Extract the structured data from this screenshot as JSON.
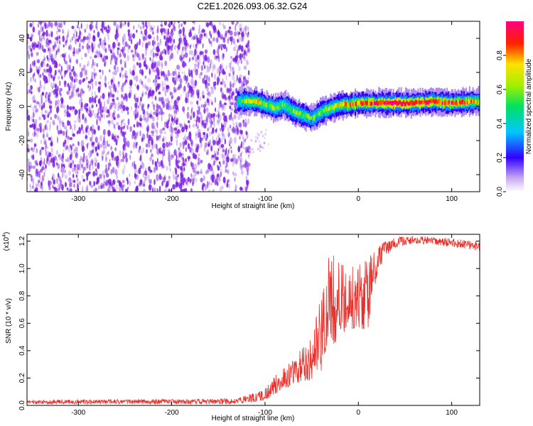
{
  "title": "C2E1.2026.093.06.32.G24",
  "chart_data": [
    {
      "type": "heatmap",
      "name": "spectrogram",
      "xlabel": "Height of straight line (km)",
      "ylabel": "Frequency (Hz)",
      "xlim": [
        -355,
        130
      ],
      "ylim": [
        -50,
        50
      ],
      "xticks": [
        -300,
        -200,
        -100,
        0,
        100
      ],
      "xtick_labels": [
        "-300",
        "-200",
        "-100",
        "0",
        "100"
      ],
      "yticks": [
        -40,
        -20,
        0,
        20,
        40
      ],
      "ytick_labels": [
        "-40",
        "-20",
        "0",
        "20",
        "40"
      ],
      "noise_region_x": [
        -355,
        -125
      ],
      "ridge": {
        "x": [
          -130,
          -120,
          -110,
          -100,
          -90,
          -80,
          -70,
          -60,
          -50,
          -40,
          -30,
          -20,
          -10,
          0,
          20,
          40,
          60,
          80,
          100,
          130
        ],
        "freq": [
          3,
          3,
          3,
          1,
          -1,
          1,
          -3,
          -5,
          -7,
          -3,
          -1,
          1,
          1,
          2,
          2,
          2,
          2,
          3,
          2,
          3
        ],
        "amplitude": [
          0.45,
          0.6,
          0.7,
          0.55,
          0.6,
          0.5,
          0.6,
          0.55,
          0.5,
          0.55,
          0.6,
          0.7,
          0.75,
          0.8,
          0.9,
          0.95,
          0.9,
          0.9,
          0.85,
          0.7
        ]
      },
      "colorbar": {
        "label": "Normalized spectral amplitude",
        "ticks": [
          0.0,
          0.2,
          0.4,
          0.6,
          0.8
        ],
        "tick_labels": [
          "0.0",
          "0.2",
          "0.4",
          "0.6",
          "0.8"
        ],
        "range": [
          0,
          1
        ]
      }
    },
    {
      "type": "line",
      "name": "snr",
      "xlabel": "Height of straight line (km)",
      "ylabel": "SNR (10 * v/v)",
      "scale_label": "(x10",
      "scale_exponent": "4",
      "xlim": [
        -355,
        130
      ],
      "ylim": [
        0,
        1.25
      ],
      "xticks": [
        -300,
        -200,
        -100,
        0,
        100
      ],
      "xtick_labels": [
        "-300",
        "-200",
        "-100",
        "0",
        "100"
      ],
      "yticks": [
        0.0,
        0.2,
        0.4,
        0.6,
        0.8,
        1.0,
        1.2
      ],
      "ytick_labels": [
        "0.0",
        "0.2",
        "0.4",
        "0.6",
        "0.8",
        "1.0",
        "1.2"
      ],
      "color": "#e8302a",
      "envelope": {
        "x": [
          -355,
          -130,
          -115,
          -100,
          -90,
          -80,
          -70,
          -60,
          -50,
          -40,
          -30,
          -20,
          -10,
          0,
          10,
          20,
          30,
          40,
          60,
          80,
          100,
          115,
          130
        ],
        "low": [
          0.01,
          0.01,
          0.02,
          0.04,
          0.08,
          0.12,
          0.15,
          0.18,
          0.18,
          0.25,
          0.4,
          0.5,
          0.55,
          0.55,
          0.55,
          0.95,
          1.1,
          1.15,
          1.18,
          1.17,
          1.16,
          1.14,
          1.13
        ],
        "high": [
          0.04,
          0.05,
          0.09,
          0.12,
          0.22,
          0.28,
          0.34,
          0.42,
          0.5,
          0.8,
          1.15,
          1.05,
          1.0,
          1.1,
          1.1,
          1.18,
          1.2,
          1.23,
          1.24,
          1.23,
          1.22,
          1.21,
          1.2
        ]
      }
    }
  ],
  "colors": {
    "noise": "#7a1fe0",
    "snr_line": "#e8302a"
  }
}
